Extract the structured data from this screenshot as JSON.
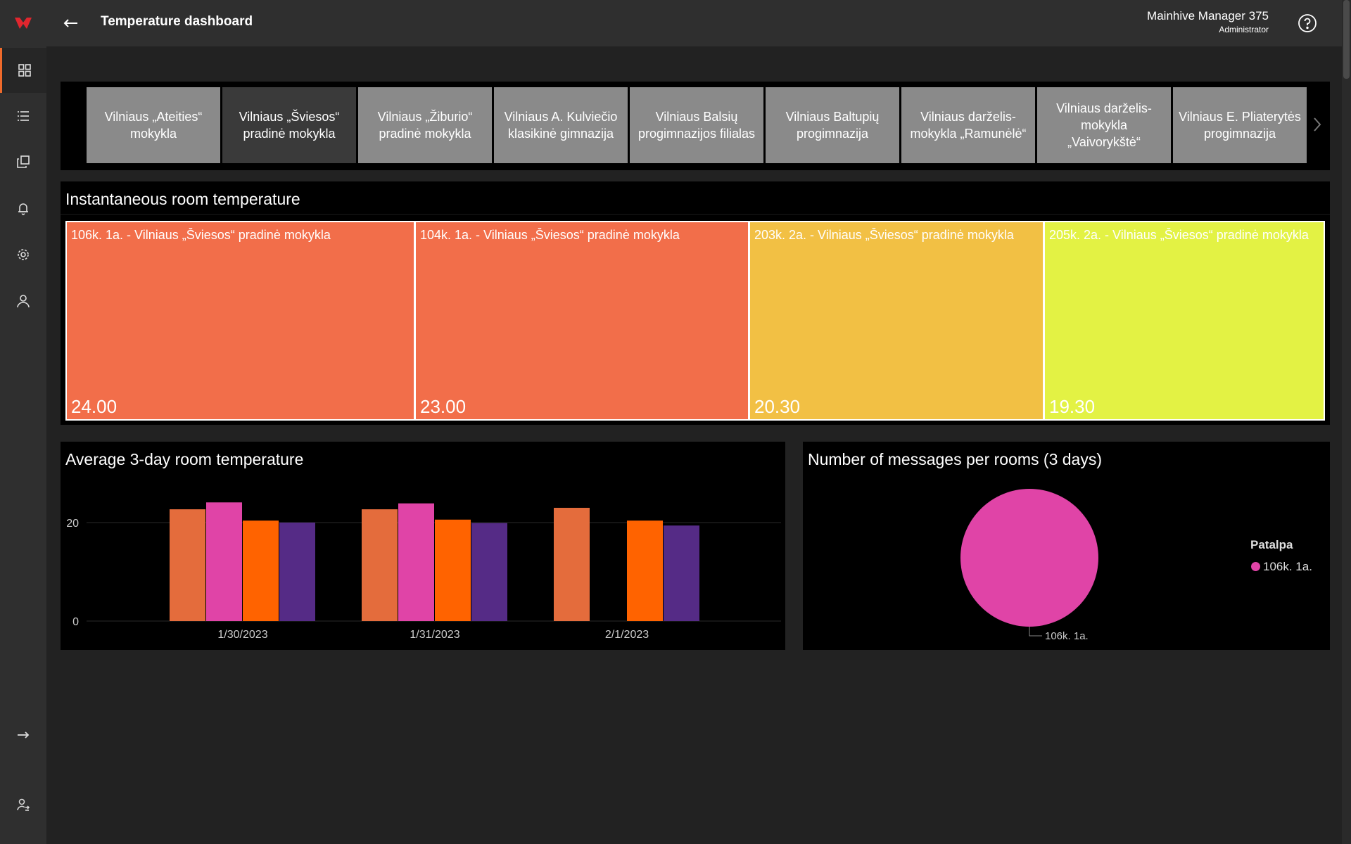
{
  "app": {
    "title": "Temperature dashboard",
    "user_name": "Mainhive Manager 375",
    "user_role": "Administrator"
  },
  "sidebar": {
    "items": [
      {
        "icon": "dashboard-icon",
        "active": true
      },
      {
        "icon": "list-icon",
        "active": false
      },
      {
        "icon": "devices-icon",
        "active": false
      },
      {
        "icon": "bell-icon",
        "active": false
      },
      {
        "icon": "gear-icon",
        "active": false
      },
      {
        "icon": "user-icon",
        "active": false
      }
    ],
    "bottom_items": [
      {
        "icon": "logout-arrow-icon"
      },
      {
        "icon": "account-switch-icon"
      }
    ]
  },
  "schools": [
    {
      "name": "Vilniaus „Ateities“ mokykla",
      "selected": false
    },
    {
      "name": "Vilniaus „Šviesos“ pradinė mokykla",
      "selected": true
    },
    {
      "name": "Vilniaus „Žiburio“ pradinė mokykla",
      "selected": false
    },
    {
      "name": "Vilniaus A. Kulviečio klasikinė gimnazija",
      "selected": false
    },
    {
      "name": "Vilniaus Balsių progimnazijos filialas",
      "selected": false
    },
    {
      "name": "Vilniaus Baltupių progimnazija",
      "selected": false
    },
    {
      "name": "Vilniaus darželis-mokykla „Ramunėlė“",
      "selected": false
    },
    {
      "name": "Vilniaus darželis-mokykla „Vaivorykštė“",
      "selected": false
    },
    {
      "name": "Vilniaus E. Pliaterytės progimnazija",
      "selected": false
    }
  ],
  "treemap": {
    "title": "Instantaneous room temperature",
    "cells": [
      {
        "label": "106k. 1a. - Vilniaus „Šviesos“ pradinė mokykla",
        "value": "24.00",
        "color": "#f26e4a"
      },
      {
        "label": "104k. 1a. - Vilniaus „Šviesos“ pradinė mokykla",
        "value": "23.00",
        "color": "#f26e4a"
      },
      {
        "label": "203k. 2a. - Vilniaus „Šviesos“ pradinė mokykla",
        "value": "20.30",
        "color": "#f2c044"
      },
      {
        "label": "205k. 2a. - Vilniaus „Šviesos“ pradinė mokykla",
        "value": "19.30",
        "color": "#e3f244"
      }
    ]
  },
  "bar_chart": {
    "title": "Average 3-day room temperature"
  },
  "pie_chart": {
    "title": "Number of messages per rooms (3 days)",
    "legend_title": "Patalpa",
    "slice_label": "106k. 1a."
  },
  "chart_data": [
    {
      "type": "bar",
      "title": "Average 3-day room temperature",
      "categories": [
        "1/30/2023",
        "1/31/2023",
        "2/1/2023"
      ],
      "series": [
        {
          "values": [
            22.7,
            22.7,
            23.0
          ],
          "color": "#e46c3c"
        },
        {
          "values": [
            24.1,
            23.9,
            null
          ],
          "color": "#e044a7"
        },
        {
          "values": [
            20.4,
            20.6,
            20.4
          ],
          "color": "#ff6300"
        },
        {
          "values": [
            20.0,
            19.9,
            19.4
          ],
          "color": "#552b86"
        }
      ],
      "yticks": [
        0,
        20
      ],
      "ylim": [
        0,
        27
      ],
      "grid": true
    },
    {
      "type": "pie",
      "title": "Number of messages per rooms (3 days)",
      "legend_title": "Patalpa",
      "slices": [
        {
          "label": "106k. 1a.",
          "value": 100,
          "color": "#e044a7"
        }
      ],
      "legend_placement": "right"
    }
  ]
}
